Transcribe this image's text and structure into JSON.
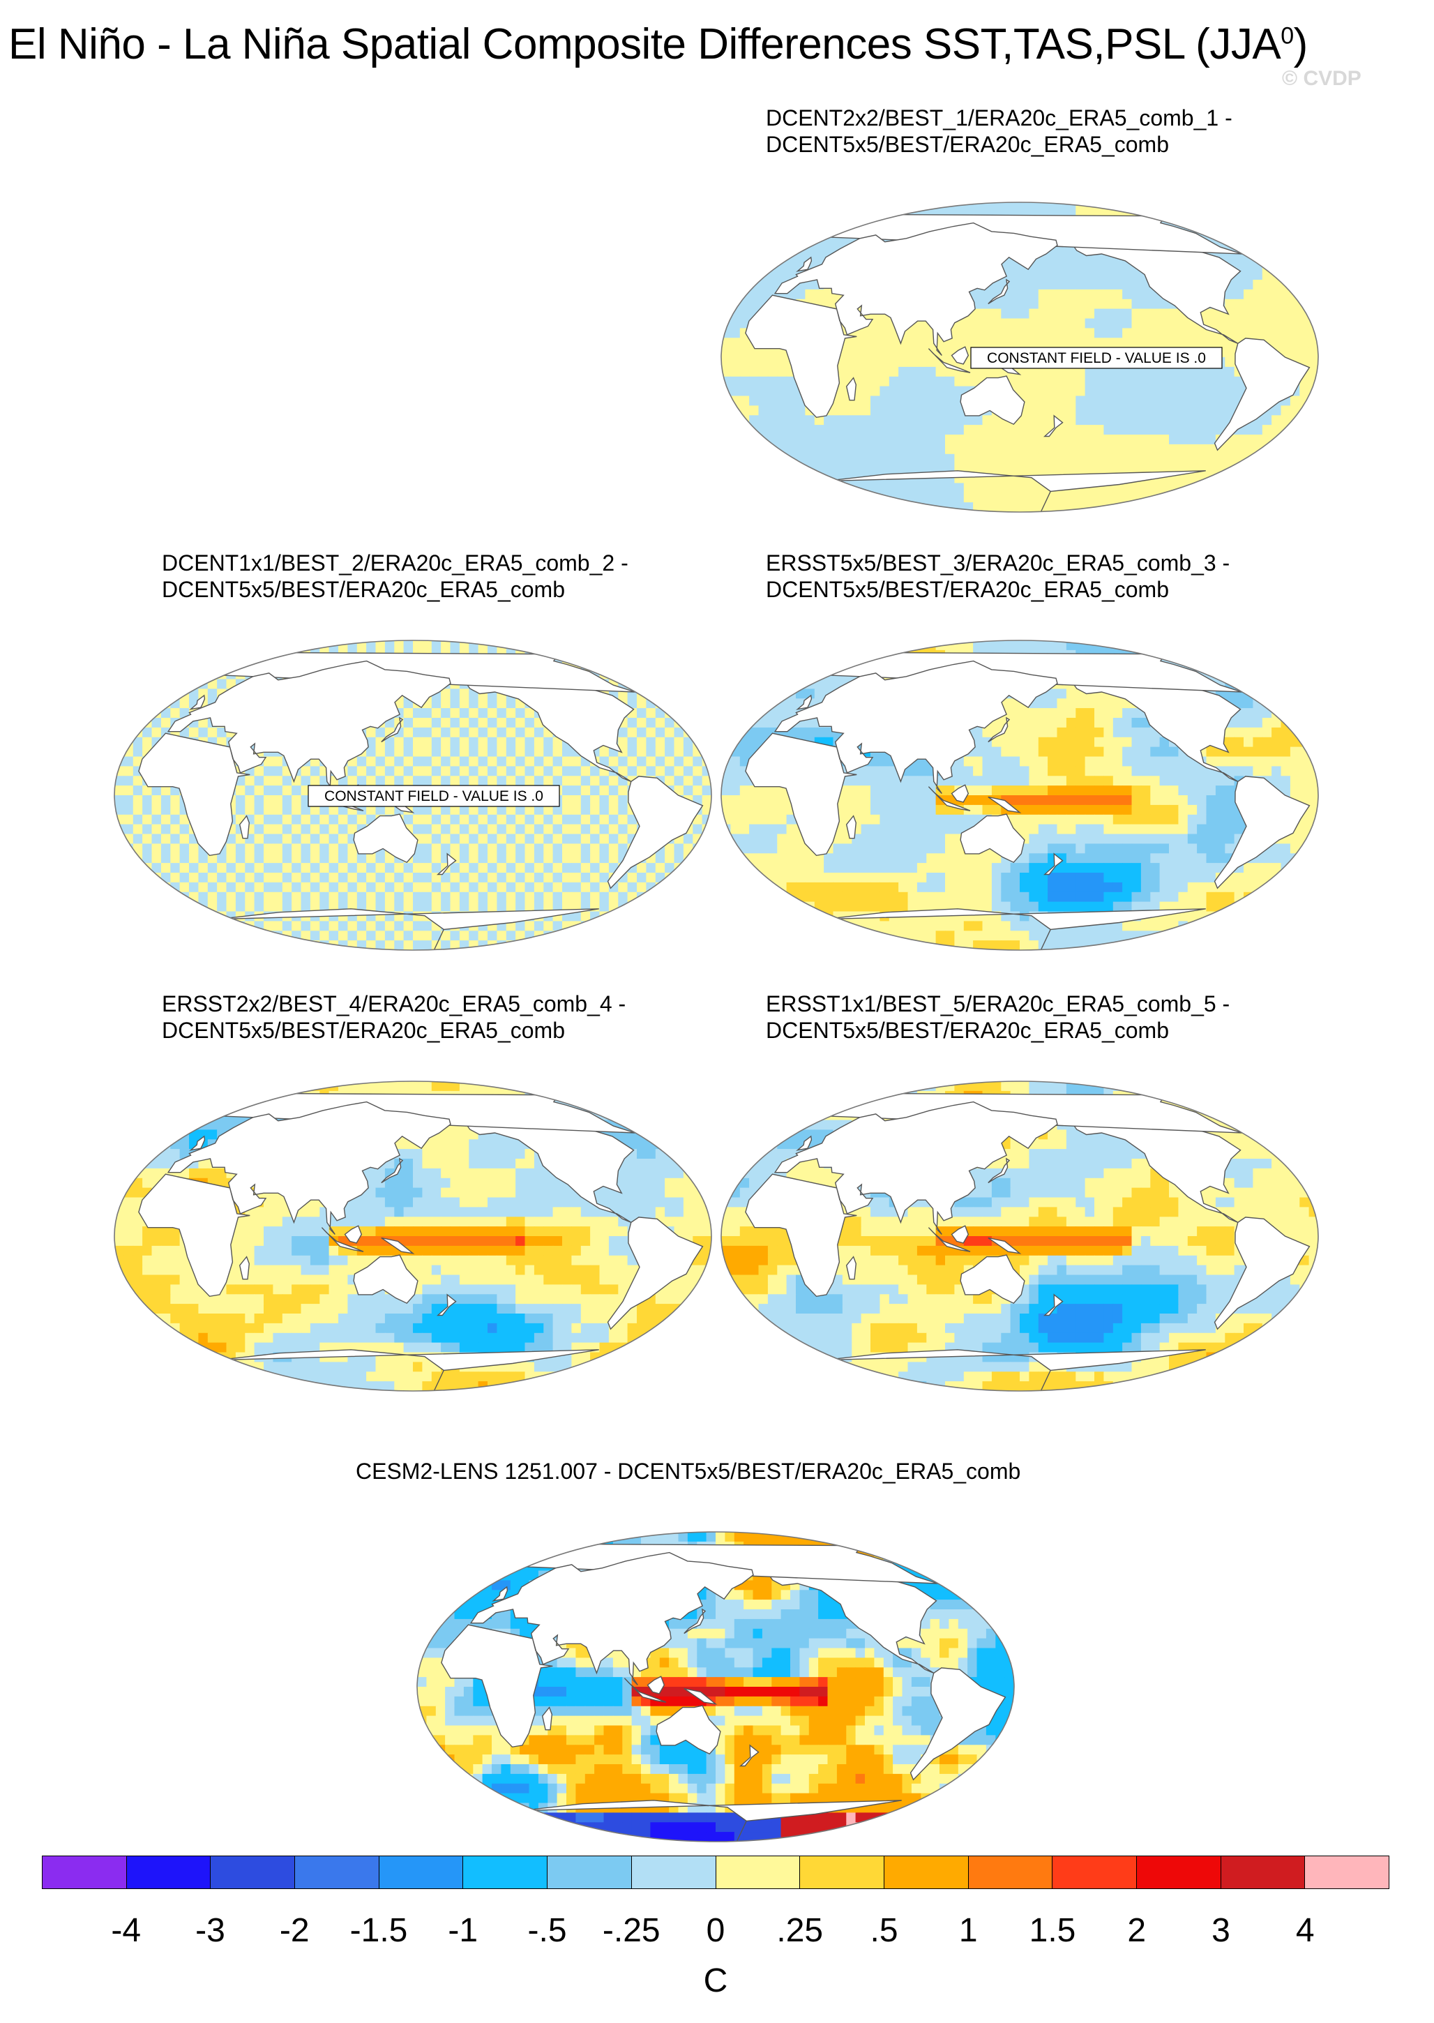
{
  "title": {
    "main": "El Niño - La Niña Spatial Composite Differences SST,TAS,PSL (JJA",
    "superscript": "0",
    "close": ")"
  },
  "watermark": "© CVDP",
  "panels": [
    {
      "id": "p1",
      "line1": "DCENT2x2/BEST_1/ERA20c_ERA5_comb_1 -",
      "line2": "DCENT5x5/BEST/ERA20c_ERA5_comb",
      "field": "constant",
      "constant_label": "CONSTANT FIELD - VALUE IS .0"
    },
    {
      "id": "p2",
      "line1": "DCENT1x1/BEST_2/ERA20c_ERA5_comb_2 -",
      "line2": "DCENT5x5/BEST/ERA20c_ERA5_comb",
      "field": "constant",
      "constant_label": "CONSTANT FIELD - VALUE IS .0"
    },
    {
      "id": "p3",
      "line1": "ERSST5x5/BEST_3/ERA20c_ERA5_comb_3 -",
      "line2": "DCENT5x5/BEST/ERA20c_ERA5_comb",
      "field": "anomaly"
    },
    {
      "id": "p4",
      "line1": "ERSST2x2/BEST_4/ERA20c_ERA5_comb_4 -",
      "line2": "DCENT5x5/BEST/ERA20c_ERA5_comb",
      "field": "anomaly"
    },
    {
      "id": "p5",
      "line1": "ERSST1x1/BEST_5/ERA20c_ERA5_comb_5 -",
      "line2": "DCENT5x5/BEST/ERA20c_ERA5_comb",
      "field": "anomaly"
    },
    {
      "id": "p6",
      "line1": "CESM2-LENS 1251.007 - DCENT5x5/BEST/ERA20c_ERA5_comb",
      "line2": "",
      "field": "strong"
    }
  ],
  "colorbar": {
    "colors": [
      "#8b2cf0",
      "#1e14fa",
      "#2d4ce0",
      "#3a78ec",
      "#2596f8",
      "#12beff",
      "#7ccaf2",
      "#b2dff5",
      "#fff99a",
      "#ffd836",
      "#ffaa00",
      "#ff7a10",
      "#ff3c18",
      "#ee0808",
      "#d01c20",
      "#ffb6bb"
    ],
    "labels": [
      "-4",
      "-3",
      "-2",
      "-1.5",
      "-1",
      "-.5",
      "-.25",
      "0",
      ".25",
      ".5",
      "1",
      "1.5",
      "2",
      "3",
      "4"
    ],
    "units": "C"
  }
}
